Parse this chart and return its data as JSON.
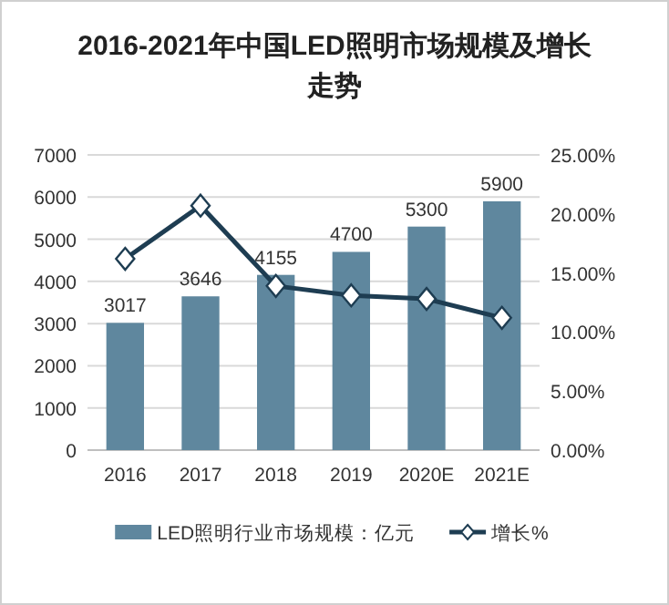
{
  "chart_data": {
    "type": "bar",
    "title": "2016-2021年中国LED照明市场规模及增长走势",
    "categories": [
      "2016",
      "2017",
      "2018",
      "2019",
      "2020E",
      "2021E"
    ],
    "series": [
      {
        "name": "LED照明行业市场规模：亿元",
        "color": "#5f879e",
        "values": [
          3017,
          3646,
          4155,
          4700,
          5300,
          5900
        ],
        "value_labels": [
          "3017",
          "3646",
          "4155",
          "4700",
          "5300",
          "5900"
        ]
      },
      {
        "name": "增长%",
        "type": "line",
        "axis": "y2",
        "color": "#1e3d52",
        "marker": "diamond",
        "values": [
          16.2,
          20.7,
          13.9,
          13.1,
          12.8,
          11.2
        ]
      }
    ],
    "ylim": [
      0,
      7000
    ],
    "yticks": [
      0,
      1000,
      2000,
      3000,
      4000,
      5000,
      6000,
      7000
    ],
    "y2lim": [
      0,
      25
    ],
    "y2ticks": [
      {
        "value": 0,
        "label": "0.00%"
      },
      {
        "value": 5,
        "label": "5.00%"
      },
      {
        "value": 10,
        "label": "10.00%"
      },
      {
        "value": 15,
        "label": "15.00%"
      },
      {
        "value": 20,
        "label": "20.00%"
      },
      {
        "value": 25,
        "label": "25.00%"
      }
    ],
    "grid": "y",
    "legend": "bottom"
  }
}
